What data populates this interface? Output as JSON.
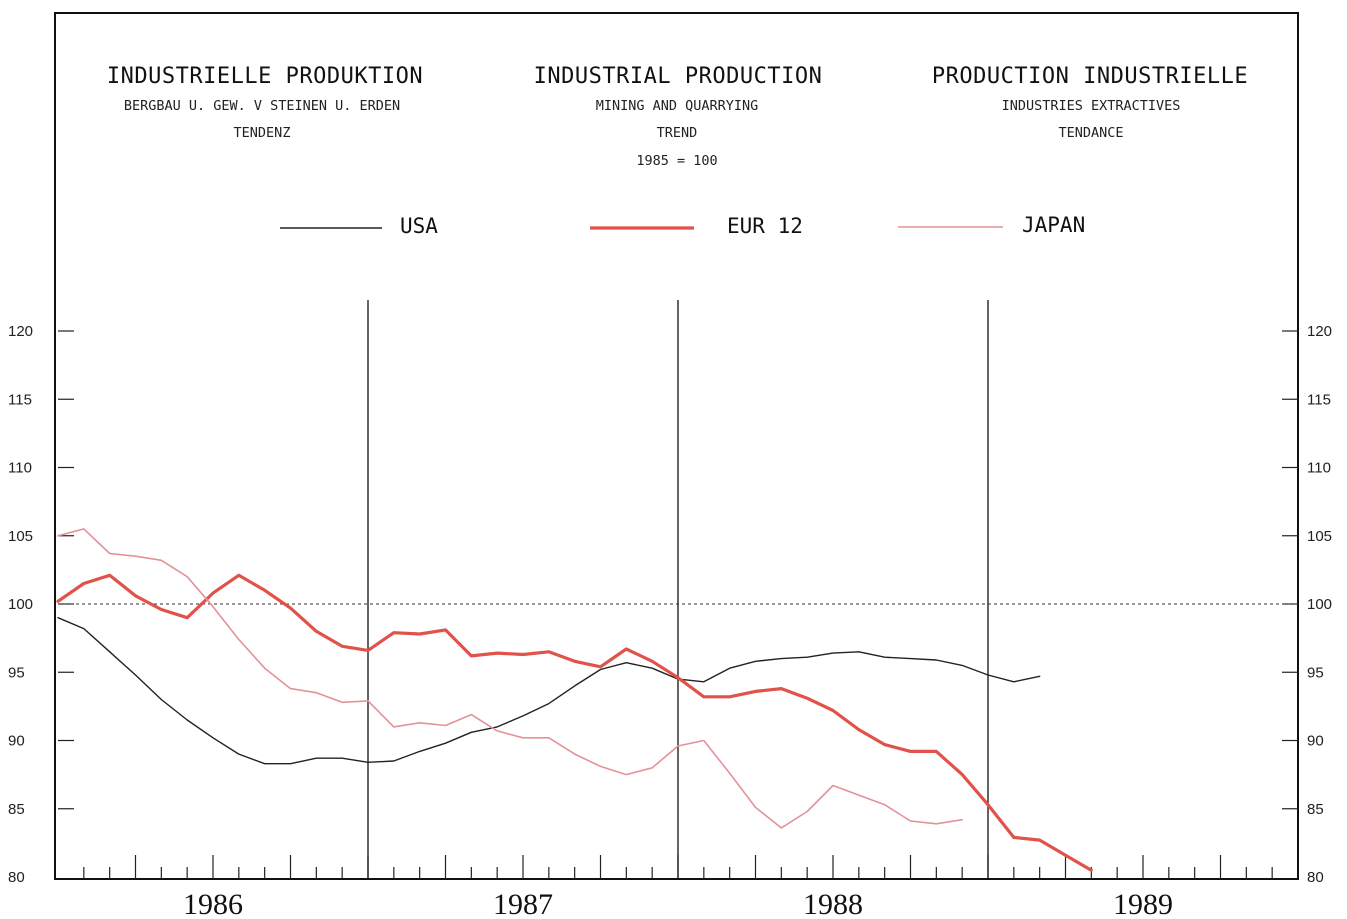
{
  "header": {
    "de": {
      "title": "INDUSTRIELLE PRODUKTION",
      "sub1": "BERGBAU U. GEW. V STEINEN U. ERDEN",
      "sub2": "TENDENZ"
    },
    "en": {
      "title": "INDUSTRIAL PRODUCTION",
      "sub1": "MINING AND QUARRYING",
      "sub2": "TREND",
      "sub3": "1985 = 100"
    },
    "fr": {
      "title": "PRODUCTION INDUSTRIELLE",
      "sub1": "INDUSTRIES EXTRACTIVES",
      "sub2": "TENDANCE"
    }
  },
  "chart_data": {
    "type": "line",
    "title": "INDUSTRIAL PRODUCTION",
    "xlabel": "",
    "ylabel": "",
    "ylim": [
      80,
      120
    ],
    "yticks": [
      80,
      85,
      90,
      95,
      100,
      105,
      110,
      115,
      120
    ],
    "xlim": [
      0,
      48
    ],
    "year_labels": [
      {
        "label": "1986",
        "pos": 6
      },
      {
        "label": "1987",
        "pos": 18
      },
      {
        "label": "1988",
        "pos": 30
      },
      {
        "label": "1989",
        "pos": 42
      }
    ],
    "year_dividers": [
      12,
      24,
      36
    ],
    "reference_line": 100,
    "series": [
      {
        "name": "USA",
        "color": "#222222",
        "width": 1.4,
        "x": [
          0,
          1,
          2,
          3,
          4,
          5,
          6,
          7,
          8,
          9,
          10,
          11,
          12,
          13,
          14,
          15,
          16,
          17,
          18,
          19,
          20,
          21,
          22,
          23,
          24,
          25,
          26,
          27,
          28,
          29,
          30,
          31,
          32,
          33,
          34,
          35,
          36,
          37,
          38
        ],
        "y": [
          99.0,
          98.2,
          96.5,
          94.8,
          93.0,
          91.5,
          90.2,
          89.0,
          88.3,
          88.3,
          88.7,
          88.7,
          88.4,
          88.5,
          89.2,
          89.8,
          90.6,
          91.0,
          91.8,
          92.7,
          94.0,
          95.2,
          95.7,
          95.3,
          94.5,
          94.3,
          95.3,
          95.8,
          96.0,
          96.1,
          96.4,
          96.5,
          96.1,
          96.0,
          95.9,
          95.5,
          94.8,
          94.3,
          94.7
        ]
      },
      {
        "name": "EUR 12",
        "color": "#e0524a",
        "width": 3.2,
        "x": [
          0,
          1,
          2,
          3,
          4,
          5,
          6,
          7,
          8,
          9,
          10,
          11,
          12,
          13,
          14,
          15,
          16,
          17,
          18,
          19,
          20,
          21,
          22,
          23,
          24,
          25,
          26,
          27,
          28,
          29,
          30,
          31,
          32,
          33,
          34,
          35,
          36,
          37,
          38,
          39,
          40
        ],
        "y": [
          100.2,
          101.5,
          102.1,
          100.6,
          99.6,
          99.0,
          100.8,
          102.1,
          101.0,
          99.7,
          98.0,
          96.9,
          96.6,
          97.9,
          97.8,
          98.1,
          96.2,
          96.4,
          96.3,
          96.5,
          95.8,
          95.4,
          96.7,
          95.8,
          94.6,
          93.2,
          93.2,
          93.6,
          93.8,
          93.1,
          92.2,
          90.8,
          89.7,
          89.2,
          89.2,
          87.5,
          85.3,
          82.9,
          82.7,
          81.6,
          80.5
        ]
      },
      {
        "name": "JAPAN",
        "color": "#e4919a",
        "width": 1.6,
        "x": [
          0,
          1,
          2,
          3,
          4,
          5,
          6,
          7,
          8,
          9,
          10,
          11,
          12,
          13,
          14,
          15,
          16,
          17,
          18,
          19,
          20,
          21,
          22,
          23,
          24,
          25,
          26,
          27,
          28,
          29,
          30,
          31,
          32,
          33,
          34,
          35
        ],
        "y": [
          105.0,
          105.5,
          103.7,
          103.5,
          103.2,
          102.0,
          99.8,
          97.4,
          95.3,
          93.8,
          93.5,
          92.8,
          92.9,
          91.0,
          91.3,
          91.1,
          91.9,
          90.7,
          90.2,
          90.2,
          89.0,
          88.1,
          87.5,
          88.0,
          89.6,
          90.0,
          87.6,
          85.1,
          83.6,
          84.8,
          86.7,
          86.0,
          85.3,
          84.1,
          83.9,
          84.2
        ]
      }
    ]
  }
}
